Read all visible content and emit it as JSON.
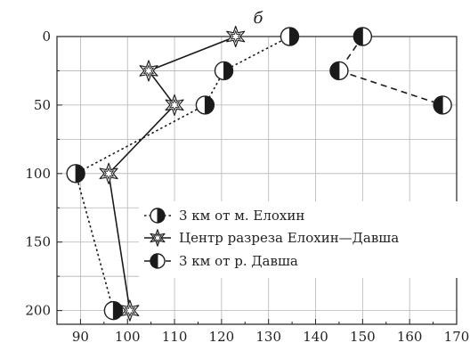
{
  "chart_data": {
    "type": "line",
    "panel_label": "б",
    "xlabel": "",
    "ylabel": "",
    "xlim": [
      85,
      170
    ],
    "ylim": [
      0,
      210
    ],
    "y_inverted": true,
    "grid": true,
    "x_ticks": [
      90,
      100,
      110,
      120,
      130,
      140,
      150,
      160,
      170
    ],
    "y_ticks": [
      0,
      50,
      100,
      150,
      200
    ],
    "x_tick_labels": [
      "90",
      "100",
      "110",
      "120",
      "130",
      "140",
      "150",
      "160",
      "170"
    ],
    "y_tick_labels": [
      "0",
      "50",
      "100",
      "150",
      "200"
    ],
    "legend_position": "center",
    "series": [
      {
        "name": "3 км от м. Елохин",
        "marker": "circle-half-right",
        "line_style": "dotted",
        "points": [
          {
            "x": 134.5,
            "y": 0
          },
          {
            "x": 120.5,
            "y": 25
          },
          {
            "x": 116.5,
            "y": 50
          },
          {
            "x": 89,
            "y": 100
          },
          {
            "x": 97,
            "y": 200
          }
        ]
      },
      {
        "name": "Центр разреза Елохин—Давша",
        "marker": "star",
        "line_style": "solid",
        "points": [
          {
            "x": 123,
            "y": 0
          },
          {
            "x": 104.5,
            "y": 25
          },
          {
            "x": 110,
            "y": 50
          },
          {
            "x": 96,
            "y": 100
          },
          {
            "x": 100.5,
            "y": 200
          }
        ]
      },
      {
        "name": "3 км от р. Давша",
        "marker": "circle-half-left",
        "line_style": "dashed",
        "points": [
          {
            "x": 150,
            "y": 0
          },
          {
            "x": 145,
            "y": 25
          },
          {
            "x": 167,
            "y": 50
          }
        ]
      }
    ]
  }
}
